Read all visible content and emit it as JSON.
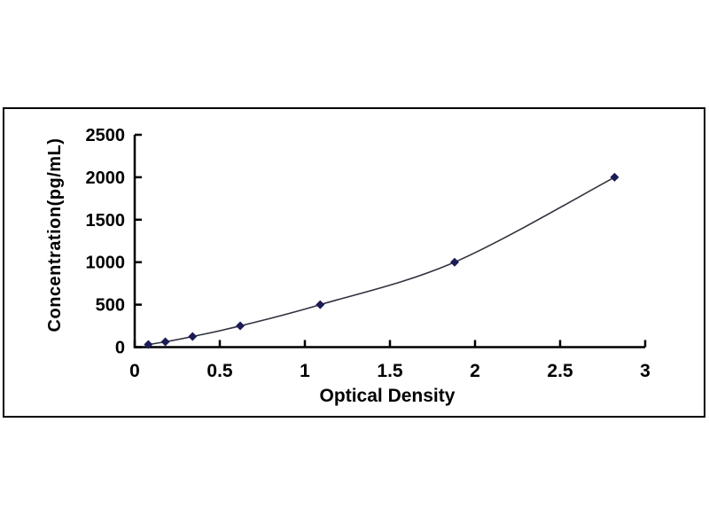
{
  "figure": {
    "background": "#ffffff",
    "frame_border_color": "#000000"
  },
  "chart_data": {
    "type": "line",
    "title": "",
    "xlabel": "Optical Density",
    "ylabel": "Concentration(pg/mL)",
    "x": [
      0.08,
      0.18,
      0.34,
      0.62,
      1.09,
      1.88,
      2.82
    ],
    "y": [
      31.2,
      62.5,
      125,
      250,
      500,
      1000,
      2000
    ],
    "xlim": [
      0,
      3
    ],
    "ylim": [
      0,
      2500
    ],
    "x_ticks": [
      0,
      0.5,
      1,
      1.5,
      2,
      2.5,
      3
    ],
    "x_tick_labels": [
      "0",
      "0.5",
      "1",
      "1.5",
      "2",
      "2.5",
      "3"
    ],
    "y_ticks": [
      0,
      500,
      1000,
      1500,
      2000,
      2500
    ],
    "y_tick_labels": [
      "0",
      "500",
      "1000",
      "1500",
      "2000",
      "2500"
    ],
    "grid": false,
    "legend": null,
    "marker": "diamond",
    "marker_color": "#1b1b55",
    "line_color": "#32323f",
    "axis_color": "#000000",
    "tick_label_color": "#000000"
  }
}
